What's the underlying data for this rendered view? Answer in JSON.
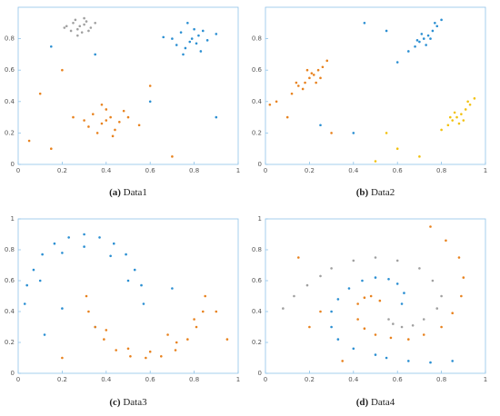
{
  "chart_data": [
    {
      "type": "scatter",
      "label": "(a)",
      "title": "Data1",
      "xlim": [
        0,
        1
      ],
      "ylim": [
        0,
        1
      ],
      "xticks": [
        0,
        0.2,
        0.4,
        0.6,
        0.8,
        1
      ],
      "yticks": [
        0,
        0.2,
        0.4,
        0.6,
        0.8
      ],
      "series": [
        {
          "color": "#a0a0a0",
          "x": [
            0.22,
            0.25,
            0.27,
            0.3,
            0.33,
            0.26,
            0.29,
            0.31,
            0.24,
            0.28,
            0.35,
            0.21,
            0.3,
            0.27,
            0.32
          ],
          "y": [
            0.88,
            0.9,
            0.86,
            0.89,
            0.87,
            0.92,
            0.84,
            0.91,
            0.85,
            0.88,
            0.9,
            0.87,
            0.93,
            0.82,
            0.85
          ]
        },
        {
          "color": "#2b8fd2",
          "x": [
            0.7,
            0.74,
            0.78,
            0.82,
            0.86,
            0.76,
            0.8,
            0.72,
            0.84,
            0.79,
            0.9,
            0.66,
            0.77,
            0.83,
            0.75,
            0.81,
            0.6,
            0.35,
            0.9,
            0.15
          ],
          "y": [
            0.8,
            0.84,
            0.78,
            0.82,
            0.79,
            0.74,
            0.86,
            0.76,
            0.85,
            0.8,
            0.83,
            0.81,
            0.9,
            0.72,
            0.7,
            0.77,
            0.4,
            0.7,
            0.3,
            0.75
          ]
        },
        {
          "color": "#e8821e",
          "x": [
            0.3,
            0.34,
            0.38,
            0.42,
            0.46,
            0.5,
            0.36,
            0.4,
            0.44,
            0.32,
            0.48,
            0.4,
            0.38,
            0.43,
            0.55,
            0.25,
            0.1,
            0.15,
            0.6,
            0.05,
            0.2,
            0.7
          ],
          "y": [
            0.28,
            0.32,
            0.26,
            0.3,
            0.27,
            0.3,
            0.2,
            0.35,
            0.22,
            0.24,
            0.34,
            0.28,
            0.38,
            0.18,
            0.25,
            0.3,
            0.45,
            0.1,
            0.5,
            0.15,
            0.6,
            0.05
          ]
        }
      ]
    },
    {
      "type": "scatter",
      "label": "(b)",
      "title": "Data2",
      "xlim": [
        0,
        1
      ],
      "ylim": [
        0,
        1
      ],
      "xticks": [
        0,
        0.2,
        0.4,
        0.6,
        0.8,
        1
      ],
      "yticks": [
        0,
        0.2,
        0.4,
        0.6,
        0.8
      ],
      "series": [
        {
          "color": "#e8821e",
          "x": [
            0.12,
            0.15,
            0.18,
            0.2,
            0.22,
            0.24,
            0.26,
            0.17,
            0.21,
            0.25,
            0.28,
            0.14,
            0.19,
            0.23,
            0.05,
            0.1,
            0.3,
            0.02
          ],
          "y": [
            0.45,
            0.5,
            0.52,
            0.55,
            0.57,
            0.6,
            0.62,
            0.48,
            0.58,
            0.55,
            0.66,
            0.52,
            0.6,
            0.52,
            0.4,
            0.3,
            0.2,
            0.38
          ]
        },
        {
          "color": "#2b8fd2",
          "x": [
            0.65,
            0.68,
            0.7,
            0.72,
            0.74,
            0.76,
            0.78,
            0.69,
            0.73,
            0.77,
            0.8,
            0.71,
            0.75,
            0.6,
            0.55,
            0.4,
            0.25,
            0.45
          ],
          "y": [
            0.72,
            0.75,
            0.78,
            0.8,
            0.82,
            0.85,
            0.88,
            0.79,
            0.76,
            0.9,
            0.92,
            0.83,
            0.8,
            0.65,
            0.85,
            0.2,
            0.25,
            0.9
          ]
        },
        {
          "color": "#f2c10f",
          "x": [
            0.8,
            0.83,
            0.85,
            0.87,
            0.89,
            0.91,
            0.93,
            0.84,
            0.88,
            0.92,
            0.95,
            0.86,
            0.9,
            0.6,
            0.5,
            0.55,
            0.7
          ],
          "y": [
            0.22,
            0.25,
            0.28,
            0.3,
            0.32,
            0.35,
            0.38,
            0.3,
            0.26,
            0.4,
            0.42,
            0.33,
            0.28,
            0.1,
            0.02,
            0.2,
            0.05
          ]
        }
      ]
    },
    {
      "type": "scatter",
      "label": "(c)",
      "title": "Data3",
      "xlim": [
        0,
        1
      ],
      "ylim": [
        0,
        1
      ],
      "xticks": [
        0,
        0.2,
        0.4,
        0.6,
        0.8,
        1
      ],
      "yticks": [
        0,
        0.2,
        0.4,
        0.6,
        0.8,
        1
      ],
      "series": [
        {
          "color": "#2b8fd2",
          "x": [
            0.03,
            0.04,
            0.07,
            0.11,
            0.165,
            0.23,
            0.3,
            0.37,
            0.435,
            0.49,
            0.53,
            0.56,
            0.57,
            0.1,
            0.2,
            0.3,
            0.42,
            0.5,
            0.12,
            0.35,
            0.2,
            0.7
          ],
          "y": [
            0.45,
            0.57,
            0.67,
            0.77,
            0.84,
            0.88,
            0.9,
            0.88,
            0.84,
            0.77,
            0.67,
            0.57,
            0.45,
            0.6,
            0.78,
            0.82,
            0.76,
            0.6,
            0.25,
            0.3,
            0.42,
            0.55
          ]
        },
        {
          "color": "#e8821e",
          "x": [
            0.31,
            0.32,
            0.35,
            0.39,
            0.445,
            0.51,
            0.58,
            0.65,
            0.715,
            0.77,
            0.81,
            0.84,
            0.85,
            0.4,
            0.5,
            0.6,
            0.72,
            0.8,
            0.95,
            0.2,
            0.9,
            0.68
          ],
          "y": [
            0.5,
            0.4,
            0.3,
            0.22,
            0.15,
            0.11,
            0.1,
            0.11,
            0.15,
            0.22,
            0.3,
            0.4,
            0.5,
            0.28,
            0.16,
            0.14,
            0.2,
            0.35,
            0.22,
            0.1,
            0.4,
            0.25
          ]
        }
      ]
    },
    {
      "type": "scatter",
      "label": "(d)",
      "title": "Data4",
      "xlim": [
        0,
        1
      ],
      "ylim": [
        0,
        1
      ],
      "xticks": [
        0,
        0.2,
        0.4,
        0.6,
        0.8,
        1
      ],
      "yticks": [
        0,
        0.2,
        0.4,
        0.6,
        0.8,
        1
      ],
      "series": [
        {
          "color": "#a0a0a0",
          "x": [
            0.08,
            0.13,
            0.19,
            0.25,
            0.3,
            0.4,
            0.5,
            0.6,
            0.7,
            0.76,
            0.8,
            0.78,
            0.72,
            0.67,
            0.62,
            0.58,
            0.56
          ],
          "y": [
            0.42,
            0.5,
            0.57,
            0.63,
            0.68,
            0.73,
            0.75,
            0.73,
            0.68,
            0.6,
            0.5,
            0.42,
            0.35,
            0.31,
            0.3,
            0.32,
            0.35
          ]
        },
        {
          "color": "#2b8fd2",
          "x": [
            0.85,
            0.75,
            0.65,
            0.55,
            0.5,
            0.4,
            0.33,
            0.3,
            0.3,
            0.33,
            0.38,
            0.44,
            0.5,
            0.56,
            0.6,
            0.63,
            0.62
          ],
          "y": [
            0.08,
            0.07,
            0.08,
            0.1,
            0.12,
            0.16,
            0.22,
            0.3,
            0.4,
            0.48,
            0.55,
            0.6,
            0.62,
            0.61,
            0.58,
            0.52,
            0.45
          ]
        },
        {
          "color": "#e8821e",
          "x": [
            0.75,
            0.82,
            0.88,
            0.9,
            0.89,
            0.85,
            0.8,
            0.72,
            0.65,
            0.57,
            0.5,
            0.45,
            0.42,
            0.42,
            0.45,
            0.48,
            0.52,
            0.15,
            0.25,
            0.2,
            0.35
          ],
          "y": [
            0.95,
            0.86,
            0.75,
            0.62,
            0.5,
            0.39,
            0.3,
            0.25,
            0.22,
            0.23,
            0.25,
            0.29,
            0.35,
            0.45,
            0.49,
            0.5,
            0.47,
            0.75,
            0.4,
            0.3,
            0.08
          ]
        }
      ]
    }
  ]
}
